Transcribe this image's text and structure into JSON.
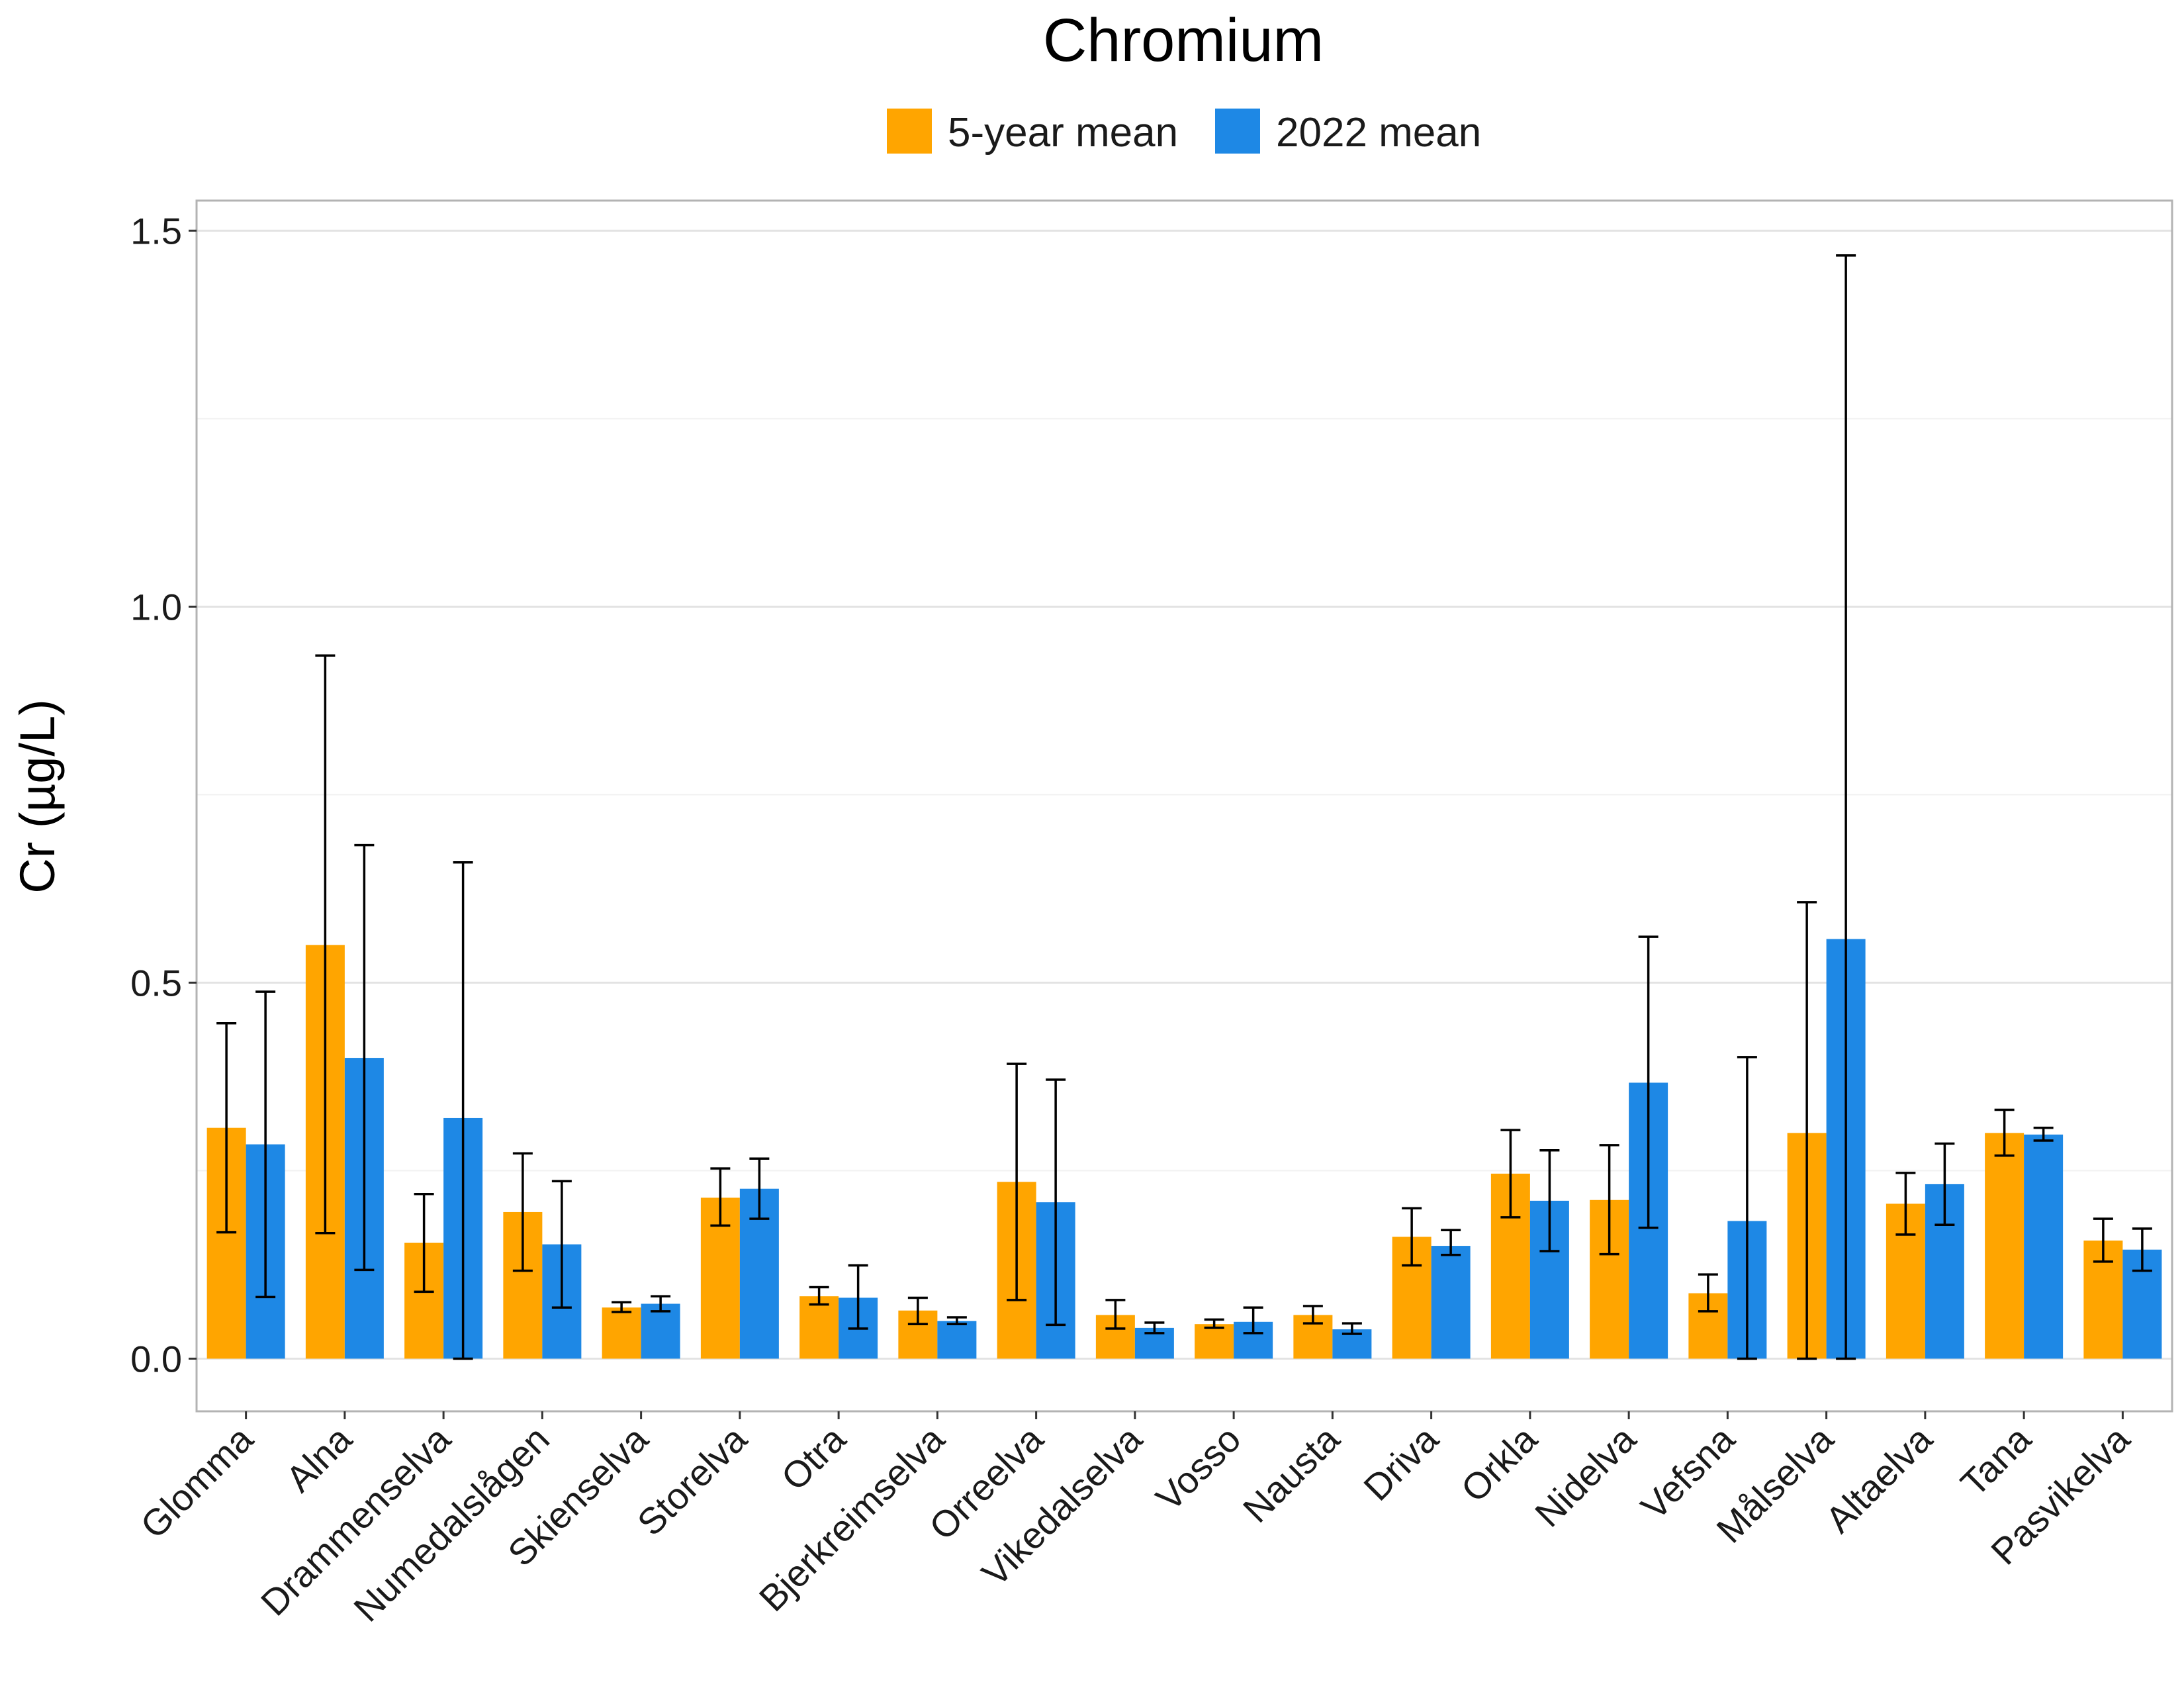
{
  "chart_data": {
    "type": "bar",
    "title": "Chromium",
    "ylabel": "Cr (µg/L)",
    "xlabel": "",
    "ylim": [
      -0.07,
      1.54
    ],
    "yticks": [
      0.0,
      0.5,
      1.0,
      1.5
    ],
    "ytick_labels": [
      "0.0",
      "0.5",
      "1.0",
      "1.5"
    ],
    "grid": true,
    "legend_position": "top",
    "categories": [
      "Glomma",
      "Alna",
      "Drammenselva",
      "Numedalslågen",
      "Skienselva",
      "Storelva",
      "Otra",
      "Bjerkreimselva",
      "Orreelva",
      "Vikedalselva",
      "Vosso",
      "Nausta",
      "Driva",
      "Orkla",
      "Nidelva",
      "Vefsna",
      "Målselva",
      "Altaelva",
      "Tana",
      "Pasvikelva"
    ],
    "series": [
      {
        "name": "5-year mean",
        "color": "#FFA500",
        "values": [
          0.307,
          0.55,
          0.154,
          0.195,
          0.068,
          0.214,
          0.083,
          0.064,
          0.235,
          0.058,
          0.046,
          0.058,
          0.162,
          0.246,
          0.211,
          0.087,
          0.3,
          0.206,
          0.3,
          0.157
        ],
        "error_low": [
          0.168,
          0.167,
          0.089,
          0.117,
          0.062,
          0.177,
          0.072,
          0.046,
          0.078,
          0.04,
          0.041,
          0.047,
          0.124,
          0.188,
          0.139,
          0.063,
          0.0,
          0.165,
          0.27,
          0.129
        ],
        "error_high": [
          0.446,
          0.935,
          0.219,
          0.273,
          0.075,
          0.253,
          0.095,
          0.081,
          0.392,
          0.078,
          0.052,
          0.07,
          0.2,
          0.304,
          0.284,
          0.112,
          0.607,
          0.247,
          0.331,
          0.186
        ]
      },
      {
        "name": "2022 mean",
        "color": "#1E88E5",
        "values": [
          0.285,
          0.4,
          0.32,
          0.152,
          0.073,
          0.226,
          0.081,
          0.05,
          0.208,
          0.041,
          0.049,
          0.039,
          0.15,
          0.21,
          0.367,
          0.183,
          0.558,
          0.232,
          0.298,
          0.145
        ],
        "error_low": [
          0.082,
          0.118,
          0.0,
          0.068,
          0.063,
          0.186,
          0.04,
          0.046,
          0.045,
          0.034,
          0.034,
          0.033,
          0.138,
          0.143,
          0.174,
          0.0,
          0.0,
          0.178,
          0.29,
          0.117
        ],
        "error_high": [
          0.488,
          0.683,
          0.66,
          0.236,
          0.083,
          0.266,
          0.124,
          0.055,
          0.371,
          0.048,
          0.068,
          0.047,
          0.171,
          0.277,
          0.561,
          0.401,
          1.467,
          0.286,
          0.307,
          0.173
        ]
      }
    ]
  }
}
